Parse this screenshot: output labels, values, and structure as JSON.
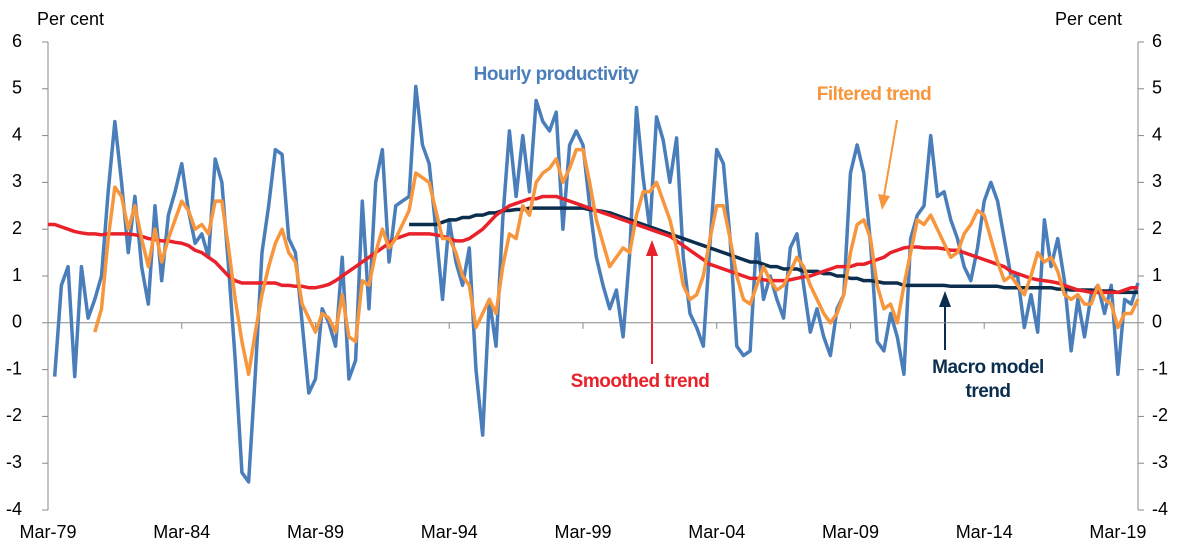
{
  "chart_data": {
    "type": "line",
    "y_label": "Per cent",
    "y2_label": "Per cent",
    "ylim": [
      -4,
      6
    ],
    "yticks": [
      -4,
      -3,
      -2,
      -1,
      0,
      1,
      2,
      3,
      4,
      5,
      6
    ],
    "y2lim": [
      -4,
      6
    ],
    "y2ticks": [
      -4,
      -3,
      -2,
      -1,
      0,
      1,
      2,
      3,
      4,
      5,
      6
    ],
    "categories": [
      "Mar-79",
      null,
      null,
      null,
      null,
      null,
      null,
      null,
      null,
      null,
      null,
      null,
      null,
      null,
      null,
      null,
      null,
      null,
      null,
      null,
      "Mar-84",
      null,
      null,
      null,
      null,
      null,
      null,
      null,
      null,
      null,
      null,
      null,
      null,
      null,
      null,
      null,
      null,
      null,
      null,
      null,
      "Mar-89",
      null,
      null,
      null,
      null,
      null,
      null,
      null,
      null,
      null,
      null,
      null,
      null,
      null,
      null,
      null,
      null,
      null,
      null,
      null,
      "Mar-94",
      null,
      null,
      null,
      null,
      null,
      null,
      null,
      null,
      null,
      null,
      null,
      null,
      null,
      null,
      null,
      null,
      null,
      null,
      null,
      "Mar-99",
      null,
      null,
      null,
      null,
      null,
      null,
      null,
      null,
      null,
      null,
      null,
      null,
      null,
      null,
      null,
      null,
      null,
      null,
      null,
      "Mar-04",
      null,
      null,
      null,
      null,
      null,
      null,
      null,
      null,
      null,
      null,
      null,
      null,
      null,
      null,
      null,
      null,
      null,
      null,
      null,
      "Mar-09",
      null,
      null,
      null,
      null,
      null,
      null,
      null,
      null,
      null,
      null,
      null,
      null,
      null,
      null,
      null,
      null,
      null,
      null,
      null,
      "Mar-14",
      null,
      null,
      null,
      null,
      null,
      null,
      null,
      null,
      null,
      null,
      null,
      null,
      null,
      null,
      null,
      null,
      null,
      null,
      null,
      "Mar-19",
      null,
      null,
      null
    ],
    "series": [
      {
        "name": "Hourly productivity",
        "color": "#4a7ebb",
        "values": [
          null,
          -1.15,
          0.8,
          1.2,
          -1.15,
          1.2,
          0.1,
          0.5,
          1.0,
          2.8,
          4.3,
          3.0,
          1.5,
          2.7,
          1.2,
          0.4,
          2.5,
          0.9,
          2.3,
          2.8,
          3.4,
          2.4,
          1.7,
          1.9,
          1.4,
          3.5,
          3.0,
          1.2,
          -0.8,
          -3.2,
          -3.4,
          -1.1,
          1.5,
          2.5,
          3.7,
          3.6,
          1.8,
          1.5,
          0.0,
          -1.5,
          -1.2,
          0.3,
          0.0,
          -0.5,
          1.4,
          -1.2,
          -0.8,
          2.6,
          0.3,
          3.0,
          3.7,
          1.3,
          2.5,
          2.6,
          2.7,
          5.05,
          3.8,
          3.4,
          2.0,
          0.5,
          2.2,
          1.3,
          0.8,
          1.6,
          -1.0,
          -2.4,
          0.5,
          -0.5,
          2.2,
          4.1,
          2.7,
          4.0,
          2.8,
          4.75,
          4.3,
          4.1,
          4.5,
          2.0,
          3.8,
          4.1,
          3.8,
          2.5,
          1.4,
          0.8,
          0.3,
          0.7,
          -0.3,
          1.5,
          4.6,
          3.1,
          2.0,
          4.4,
          3.9,
          3.0,
          3.95,
          1.4,
          0.2,
          -0.1,
          -0.5,
          1.7,
          3.7,
          3.4,
          1.8,
          -0.5,
          -0.7,
          -0.6,
          1.9,
          0.5,
          1.0,
          0.5,
          0.1,
          1.6,
          1.9,
          0.8,
          -0.2,
          0.3,
          -0.3,
          -0.7,
          0.3,
          0.6,
          3.2,
          3.8,
          3.2,
          1.7,
          -0.4,
          -0.6,
          0.2,
          -0.3,
          -1.1,
          1.8,
          2.3,
          2.5,
          4.0,
          2.7,
          2.8,
          2.2,
          1.8,
          1.2,
          0.9,
          1.6,
          2.6,
          3.0,
          2.6,
          1.8,
          1.0,
          1.0,
          -0.1,
          0.6,
          -0.2,
          2.2,
          1.2,
          1.8,
          0.9,
          -0.6,
          0.5,
          -0.3,
          0.6,
          0.8,
          0.2,
          0.8,
          -1.1,
          0.5,
          0.4,
          0.85
        ]
      },
      {
        "name": "Macro model trend",
        "color": "#0b2e4f",
        "values": [
          null,
          null,
          null,
          null,
          null,
          null,
          null,
          null,
          null,
          null,
          null,
          null,
          null,
          null,
          null,
          null,
          null,
          null,
          null,
          null,
          null,
          null,
          null,
          null,
          null,
          null,
          null,
          null,
          null,
          null,
          null,
          null,
          null,
          null,
          null,
          null,
          null,
          null,
          null,
          null,
          null,
          null,
          null,
          null,
          null,
          null,
          null,
          null,
          null,
          null,
          null,
          null,
          null,
          null,
          2.1,
          2.1,
          2.1,
          2.1,
          2.1,
          2.15,
          2.2,
          2.2,
          2.25,
          2.25,
          2.3,
          2.3,
          2.35,
          2.35,
          2.4,
          2.4,
          2.42,
          2.42,
          2.45,
          2.45,
          2.45,
          2.45,
          2.45,
          2.45,
          2.45,
          2.45,
          2.45,
          2.42,
          2.4,
          2.38,
          2.35,
          2.3,
          2.25,
          2.2,
          2.15,
          2.1,
          2.05,
          2.0,
          1.95,
          1.9,
          1.85,
          1.8,
          1.75,
          1.7,
          1.65,
          1.6,
          1.55,
          1.5,
          1.45,
          1.4,
          1.35,
          1.3,
          1.3,
          1.25,
          1.2,
          1.2,
          1.15,
          1.15,
          1.15,
          1.1,
          1.1,
          1.1,
          1.05,
          1.05,
          1.0,
          1.0,
          0.95,
          0.95,
          0.9,
          0.9,
          0.88,
          0.85,
          0.85,
          0.85,
          0.8,
          0.8,
          0.8,
          0.8,
          0.8,
          0.8,
          0.8,
          0.78,
          0.78,
          0.78,
          0.78,
          0.78,
          0.78,
          0.78,
          0.78,
          0.75,
          0.75,
          0.75,
          0.75,
          0.75,
          0.75,
          0.75,
          0.75,
          0.72,
          0.72,
          0.7,
          0.7,
          0.7,
          0.7,
          0.68,
          0.68,
          0.68,
          0.65,
          0.65,
          0.65,
          0.65
        ]
      },
      {
        "name": "Smoothed trend",
        "color": "#e8212a",
        "values": [
          2.1,
          2.1,
          2.05,
          2.0,
          1.95,
          1.92,
          1.9,
          1.9,
          1.88,
          1.9,
          1.9,
          1.9,
          1.9,
          1.88,
          1.85,
          1.8,
          1.78,
          1.75,
          1.75,
          1.72,
          1.7,
          1.65,
          1.55,
          1.5,
          1.4,
          1.3,
          1.15,
          1.0,
          0.9,
          0.85,
          0.85,
          0.85,
          0.85,
          0.85,
          0.85,
          0.8,
          0.8,
          0.78,
          0.78,
          0.75,
          0.75,
          0.78,
          0.82,
          0.9,
          1.0,
          1.1,
          1.2,
          1.3,
          1.4,
          1.5,
          1.6,
          1.7,
          1.8,
          1.85,
          1.9,
          1.9,
          1.9,
          1.9,
          1.88,
          1.85,
          1.8,
          1.75,
          1.75,
          1.8,
          1.9,
          2.0,
          2.15,
          2.3,
          2.4,
          2.5,
          2.55,
          2.6,
          2.65,
          2.65,
          2.7,
          2.7,
          2.7,
          2.65,
          2.6,
          2.55,
          2.5,
          2.45,
          2.4,
          2.35,
          2.3,
          2.25,
          2.2,
          2.15,
          2.1,
          2.05,
          2.0,
          1.95,
          1.9,
          1.85,
          1.75,
          1.65,
          1.55,
          1.45,
          1.35,
          1.25,
          1.2,
          1.15,
          1.1,
          1.05,
          1.0,
          0.95,
          0.95,
          0.92,
          0.9,
          0.9,
          0.9,
          0.92,
          0.95,
          0.98,
          1.0,
          1.05,
          1.1,
          1.15,
          1.2,
          1.2,
          1.2,
          1.25,
          1.25,
          1.3,
          1.35,
          1.4,
          1.5,
          1.55,
          1.6,
          1.62,
          1.62,
          1.6,
          1.6,
          1.6,
          1.58,
          1.55,
          1.55,
          1.5,
          1.45,
          1.4,
          1.35,
          1.3,
          1.25,
          1.2,
          1.1,
          1.05,
          1.0,
          0.95,
          0.92,
          0.9,
          0.88,
          0.85,
          0.8,
          0.75,
          0.7,
          0.68,
          0.65,
          0.65,
          0.65,
          0.65,
          0.65,
          0.7,
          0.75,
          0.75
        ]
      },
      {
        "name": "Filtered trend",
        "color": "#f7963c",
        "values": [
          null,
          null,
          null,
          null,
          null,
          null,
          null,
          -0.2,
          0.3,
          1.8,
          2.9,
          2.7,
          2.0,
          2.5,
          1.8,
          1.2,
          2.0,
          1.3,
          1.8,
          2.2,
          2.6,
          2.4,
          2.0,
          2.1,
          1.9,
          2.6,
          2.6,
          1.6,
          0.5,
          -0.4,
          -1.1,
          -0.2,
          0.6,
          1.2,
          1.7,
          2.0,
          1.5,
          1.3,
          0.4,
          0.1,
          -0.2,
          0.2,
          0.1,
          -0.2,
          0.6,
          -0.3,
          -0.4,
          0.9,
          0.8,
          1.5,
          2.0,
          1.6,
          1.8,
          2.1,
          2.4,
          3.2,
          3.1,
          3.0,
          2.4,
          1.8,
          1.8,
          1.5,
          1.0,
          0.8,
          -0.1,
          0.2,
          0.5,
          0.2,
          1.2,
          1.9,
          1.8,
          2.5,
          2.3,
          3.0,
          3.2,
          3.3,
          3.5,
          3.0,
          3.3,
          3.7,
          3.7,
          3.0,
          2.2,
          1.7,
          1.2,
          1.4,
          1.6,
          1.5,
          2.3,
          2.8,
          2.8,
          3.0,
          2.6,
          2.2,
          1.6,
          0.8,
          0.5,
          0.6,
          1.0,
          1.8,
          2.5,
          2.5,
          1.8,
          1.0,
          0.5,
          0.4,
          0.8,
          1.2,
          0.9,
          0.7,
          0.8,
          1.1,
          1.4,
          1.2,
          0.8,
          0.5,
          0.2,
          0.0,
          0.2,
          0.6,
          1.5,
          2.1,
          2.2,
          1.8,
          0.8,
          0.3,
          0.4,
          0.0,
          0.8,
          1.5,
          2.2,
          2.1,
          2.3,
          2.0,
          1.7,
          1.4,
          1.5,
          1.9,
          2.1,
          2.4,
          2.3,
          1.8,
          1.3,
          0.9,
          1.0,
          0.8,
          0.6,
          1.0,
          1.5,
          1.3,
          1.4,
          1.1,
          0.6,
          0.5,
          0.6,
          0.4,
          0.4,
          0.8,
          0.5,
          0.4,
          -0.1,
          0.2,
          0.2,
          0.5
        ]
      }
    ]
  }
}
